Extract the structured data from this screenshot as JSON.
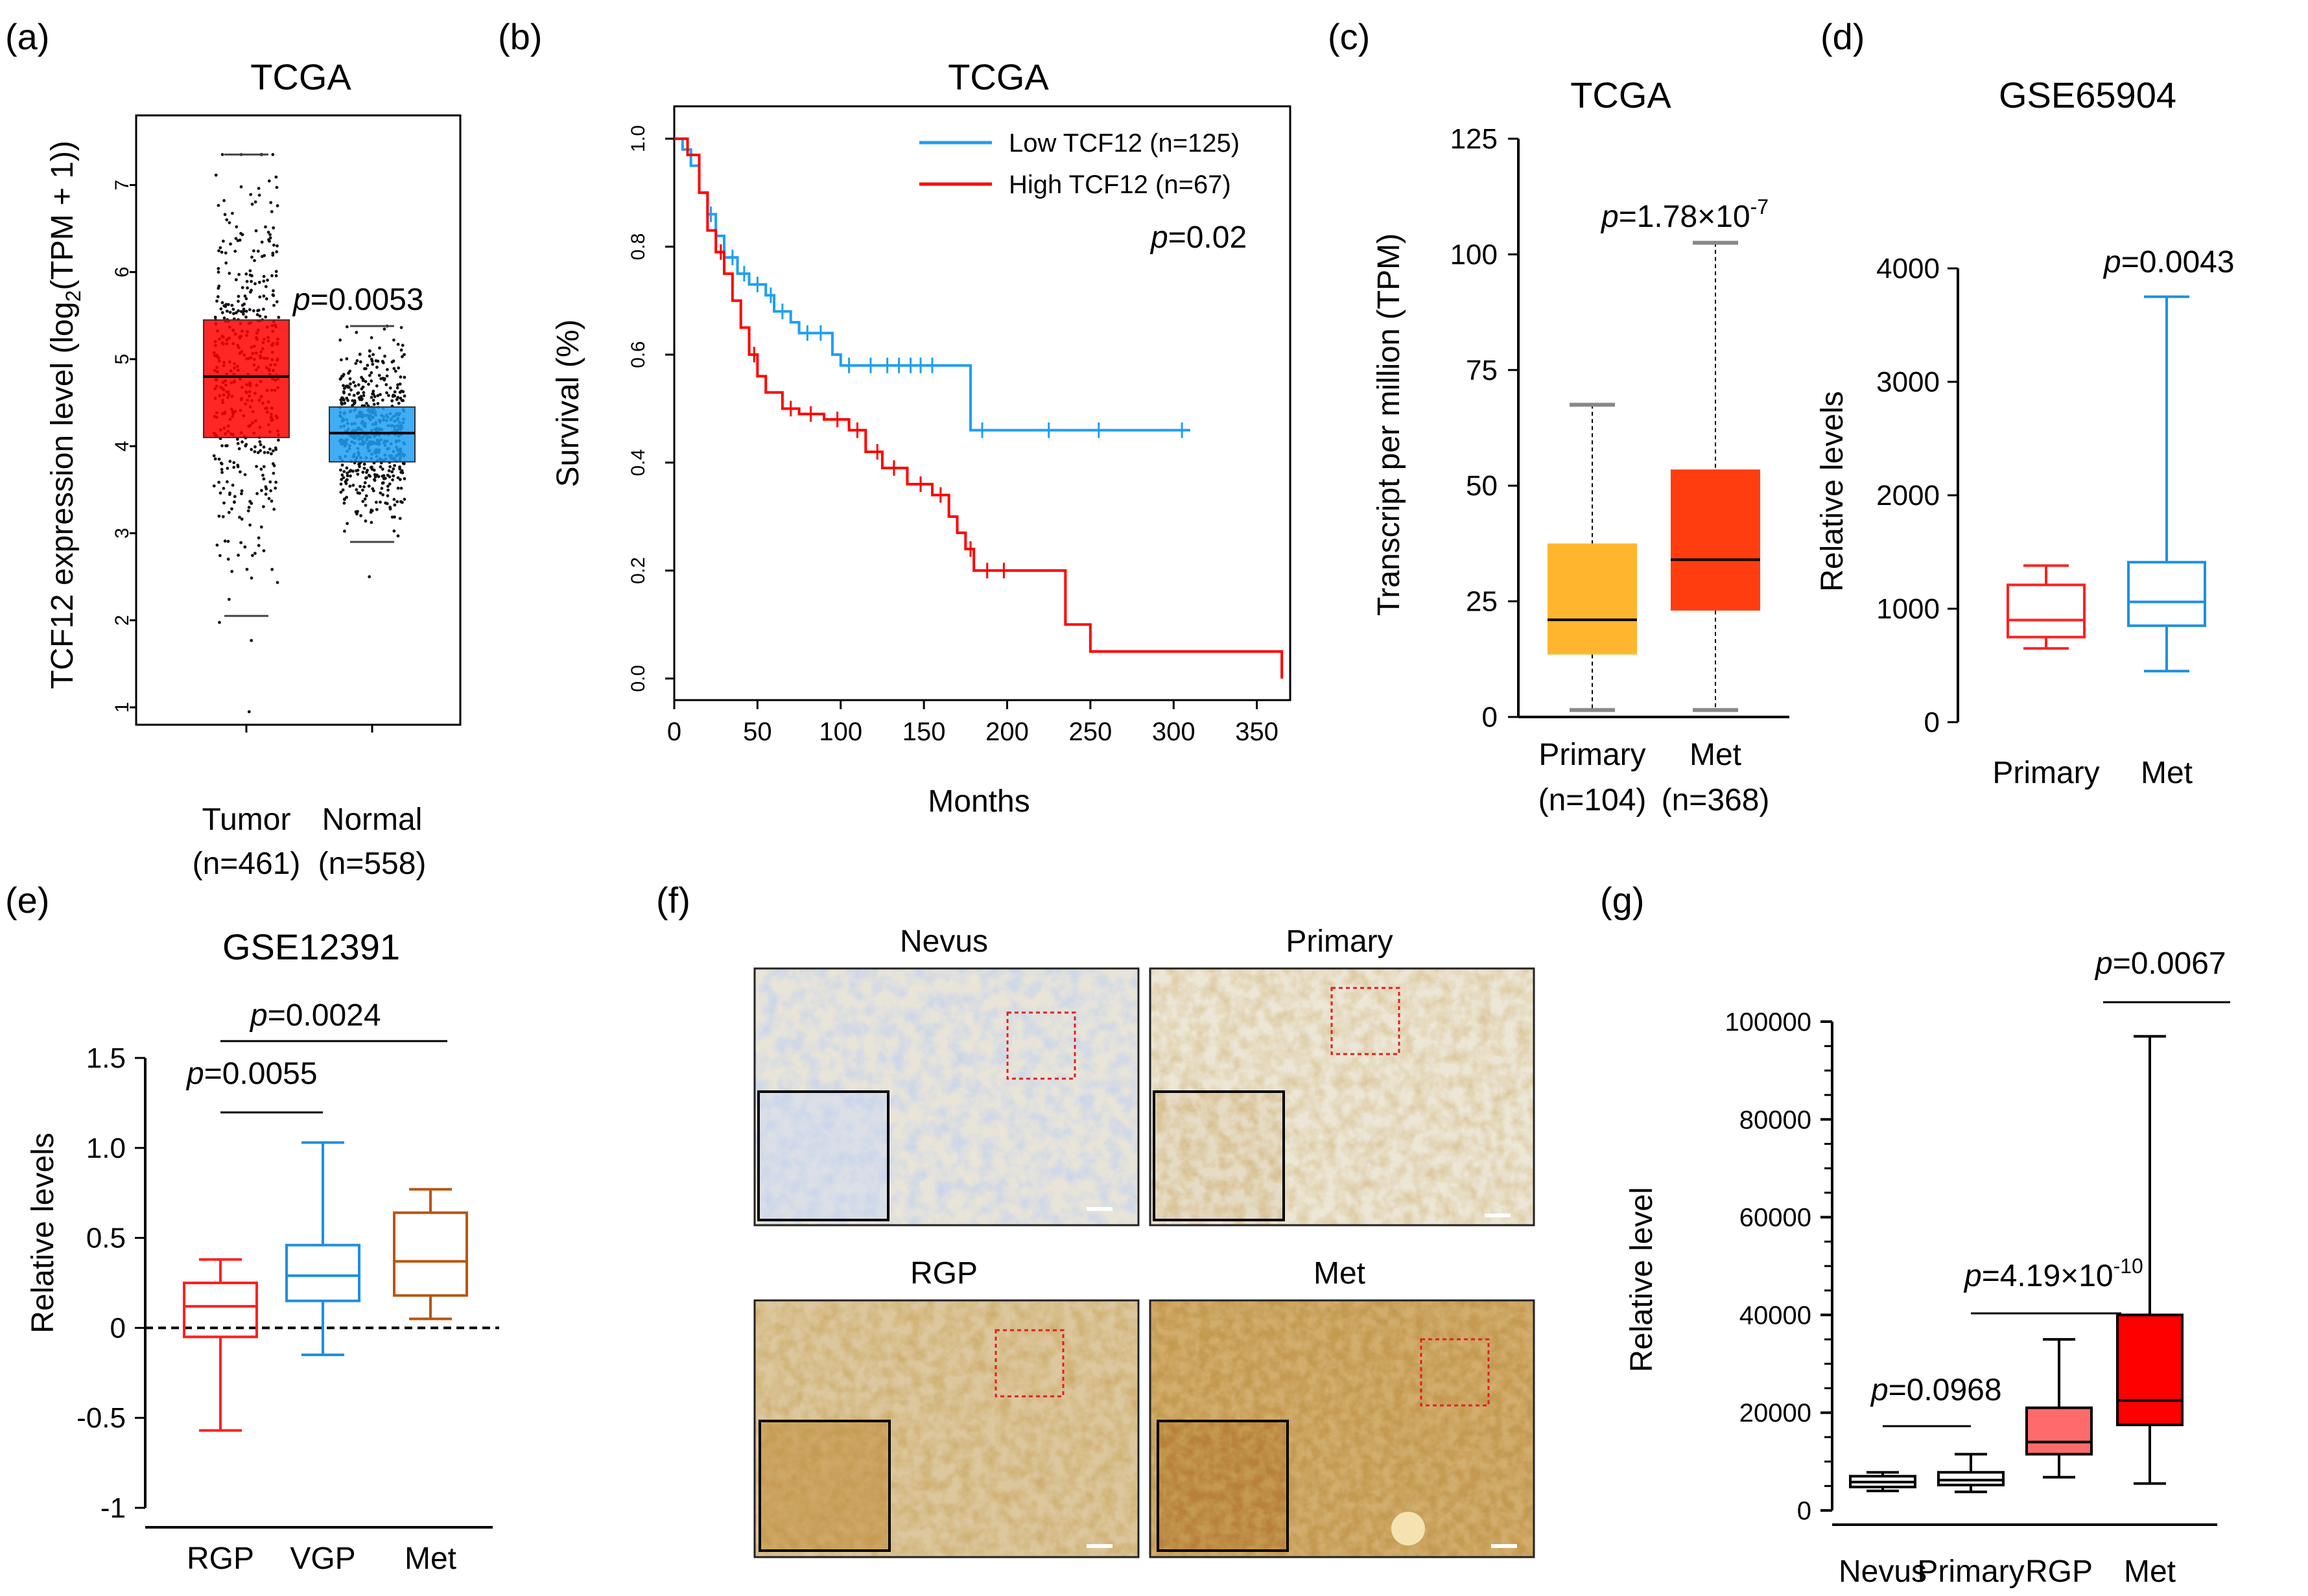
{
  "panels": {
    "a": {
      "label": "(a)"
    },
    "b": {
      "label": "(b)"
    },
    "c": {
      "label": "(c)"
    },
    "d": {
      "label": "(d)"
    },
    "e": {
      "label": "(e)"
    },
    "f": {
      "label": "(f)"
    },
    "g": {
      "label": "(g)"
    }
  },
  "chart_data": [
    {
      "panel": "a",
      "type": "box",
      "title": "TCGA",
      "ylabel": "TCF12 expression level (log2(TPM + 1))",
      "ylabel_parts": {
        "pre": "TCF12 expression level (log",
        "sub": "2",
        "post": "(TPM + 1))"
      },
      "ylim": [
        0.8,
        7.8
      ],
      "yticks": [
        1,
        2,
        3,
        4,
        5,
        6,
        7
      ],
      "categories": [
        "Tumor",
        "Normal"
      ],
      "category_n": [
        "(n=461)",
        "(n=558)"
      ],
      "boxes": [
        {
          "name": "Tumor",
          "n": 461,
          "whisker_low": 2.05,
          "q1": 4.1,
          "median": 4.8,
          "q3": 5.45,
          "whisker_high": 7.35,
          "min_point": 0.95,
          "max_point": 7.35,
          "color": "#ff0000"
        },
        {
          "name": "Normal",
          "n": 558,
          "whisker_low": 2.9,
          "q1": 3.82,
          "median": 4.15,
          "q3": 4.45,
          "whisker_high": 5.38,
          "min_point": 2.5,
          "max_point": 5.38,
          "color": "#1e9ff2"
        }
      ],
      "annotation": {
        "p_label": "p",
        "p_value": "=0.0053"
      }
    },
    {
      "panel": "b",
      "type": "line",
      "title": "TCGA",
      "xlabel": "Months",
      "ylabel": "Survival (%)",
      "xlim": [
        0,
        370
      ],
      "ylim": [
        -0.04,
        1.06
      ],
      "xticks": [
        0,
        50,
        100,
        150,
        200,
        250,
        300,
        350
      ],
      "yticks": [
        0.0,
        0.2,
        0.4,
        0.6,
        0.8,
        1.0
      ],
      "ytick_labels": [
        "0.0",
        "0.2",
        "0.4",
        "0.6",
        "0.8",
        "1.0"
      ],
      "series": [
        {
          "name": "Low TCF12 (n=125)",
          "color": "#1e9ff2",
          "x": [
            0,
            5,
            10,
            15,
            20,
            25,
            30,
            38,
            45,
            55,
            60,
            70,
            75,
            95,
            100,
            175,
            178,
            310
          ],
          "y": [
            1.0,
            0.98,
            0.95,
            0.9,
            0.86,
            0.82,
            0.78,
            0.75,
            0.73,
            0.71,
            0.68,
            0.66,
            0.64,
            0.6,
            0.58,
            0.58,
            0.46,
            0.46
          ],
          "censor_x": [
            22,
            35,
            42,
            50,
            58,
            65,
            80,
            88,
            105,
            118,
            128,
            135,
            142,
            148,
            155,
            185,
            225,
            255,
            305
          ]
        },
        {
          "name": "High TCF12 (n=67)",
          "color": "#ff0000",
          "x": [
            0,
            8,
            15,
            20,
            25,
            30,
            35,
            40,
            45,
            50,
            55,
            65,
            75,
            90,
            105,
            115,
            125,
            140,
            155,
            165,
            170,
            175,
            180,
            230,
            235,
            250,
            365,
            365
          ],
          "y": [
            1.0,
            0.97,
            0.9,
            0.83,
            0.79,
            0.75,
            0.7,
            0.65,
            0.6,
            0.56,
            0.53,
            0.5,
            0.49,
            0.48,
            0.46,
            0.42,
            0.39,
            0.36,
            0.34,
            0.3,
            0.27,
            0.24,
            0.2,
            0.2,
            0.1,
            0.05,
            0.05,
            0.0
          ],
          "censor_x": [
            28,
            48,
            70,
            82,
            98,
            110,
            122,
            132,
            148,
            160,
            178,
            188,
            198
          ]
        }
      ],
      "legend_position": "top-right",
      "annotation": {
        "p_label": "p",
        "p_value": "=0.02"
      }
    },
    {
      "panel": "c",
      "type": "box",
      "title": "TCGA",
      "ylabel": "Transcript per million (TPM)",
      "ylim": [
        0,
        125
      ],
      "yticks": [
        0,
        25,
        50,
        75,
        100,
        125
      ],
      "categories": [
        "Primary",
        "Met"
      ],
      "category_n": [
        "(n=104)",
        "(n=368)"
      ],
      "boxes": [
        {
          "name": "Primary",
          "n": 104,
          "whisker_low": 1.5,
          "q1": 13.5,
          "median": 21,
          "q3": 37.5,
          "whisker_high": 67.5,
          "color": "#ffb62e"
        },
        {
          "name": "Met",
          "n": 368,
          "whisker_low": 1.5,
          "q1": 23,
          "median": 34,
          "q3": 53.5,
          "whisker_high": 102.5,
          "color": "#ff3d0f"
        }
      ],
      "annotation": {
        "p_label": "p",
        "p_value": "=1.78×10",
        "p_exp": "-7"
      }
    },
    {
      "panel": "d",
      "type": "box",
      "title": "GSE65904",
      "ylabel": "Relative levels",
      "ylim": [
        0,
        4000
      ],
      "yticks": [
        0,
        1000,
        2000,
        3000,
        4000
      ],
      "categories": [
        "Primary",
        "Met"
      ],
      "boxes": [
        {
          "name": "Primary",
          "whisker_low": 650,
          "q1": 750,
          "median": 900,
          "q3": 1210,
          "whisker_high": 1380,
          "color": "#ff2020"
        },
        {
          "name": "Met",
          "whisker_low": 450,
          "q1": 850,
          "median": 1060,
          "q3": 1410,
          "whisker_high": 3750,
          "color": "#1e8fe0"
        }
      ],
      "annotation": {
        "p_label": "p",
        "p_value": "=0.0043"
      }
    },
    {
      "panel": "e",
      "type": "box",
      "title": "GSE12391",
      "ylabel": "Relative levels",
      "ylim": [
        -1,
        1.5
      ],
      "yticks": [
        -1,
        -0.5,
        0,
        0.5,
        1.0,
        1.5
      ],
      "ytick_labels": [
        "-1",
        "-0.5",
        "0",
        "0.5",
        "1.0",
        "1.5"
      ],
      "categories": [
        "RGP",
        "VGP",
        "Met"
      ],
      "boxes": [
        {
          "name": "RGP",
          "whisker_low": -0.57,
          "q1": -0.05,
          "median": 0.12,
          "q3": 0.25,
          "whisker_high": 0.38,
          "color": "#ff2020"
        },
        {
          "name": "VGP",
          "whisker_low": -0.15,
          "q1": 0.15,
          "median": 0.29,
          "q3": 0.46,
          "whisker_high": 1.03,
          "color": "#1e8fe0"
        },
        {
          "name": "Met",
          "whisker_low": 0.05,
          "q1": 0.18,
          "median": 0.37,
          "q3": 0.64,
          "whisker_high": 0.77,
          "color": "#b8560e"
        }
      ],
      "comparisons": [
        {
          "groups": [
            "RGP",
            "VGP"
          ],
          "p_label": "p",
          "p_value": "=0.0055"
        },
        {
          "groups": [
            "RGP",
            "Met"
          ],
          "p_label": "p",
          "p_value": "=0.0024"
        }
      ]
    },
    {
      "panel": "g",
      "type": "box",
      "ylabel": "Relative level",
      "ylim": [
        0,
        100000
      ],
      "yticks": [
        0,
        20000,
        40000,
        60000,
        80000,
        100000
      ],
      "categories": [
        "Nevus",
        "Primary",
        "RGP",
        "Met"
      ],
      "boxes": [
        {
          "name": "Nevus",
          "whisker_low": 4000,
          "q1": 4800,
          "median": 5800,
          "q3": 7000,
          "whisker_high": 7800,
          "color": "#ffffff"
        },
        {
          "name": "Primary",
          "whisker_low": 3800,
          "q1": 5200,
          "median": 6200,
          "q3": 7800,
          "whisker_high": 11500,
          "color": "#ffffff"
        },
        {
          "name": "RGP",
          "whisker_low": 6800,
          "q1": 11500,
          "median": 14000,
          "q3": 21000,
          "whisker_high": 35000,
          "color": "#ff6b6b"
        },
        {
          "name": "Met",
          "whisker_low": 5500,
          "q1": 17500,
          "median": 22500,
          "q3": 40000,
          "whisker_high": 97000,
          "color": "#ff0000"
        }
      ],
      "comparisons": [
        {
          "groups": [
            "Nevus",
            "Primary"
          ],
          "p_label": "p",
          "p_value": "=0.0968"
        },
        {
          "groups": [
            "Primary",
            "RGP"
          ],
          "p_label": "p",
          "p_value": "=4.19×10",
          "p_exp": "-10"
        },
        {
          "groups": [
            "RGP",
            "Met"
          ],
          "p_label": "p",
          "p_value": "=0.0067"
        }
      ]
    }
  ],
  "ihc": {
    "panel": "f",
    "tiles": [
      {
        "name": "Nevus"
      },
      {
        "name": "Primary"
      },
      {
        "name": "RGP"
      },
      {
        "name": "Met"
      }
    ]
  }
}
